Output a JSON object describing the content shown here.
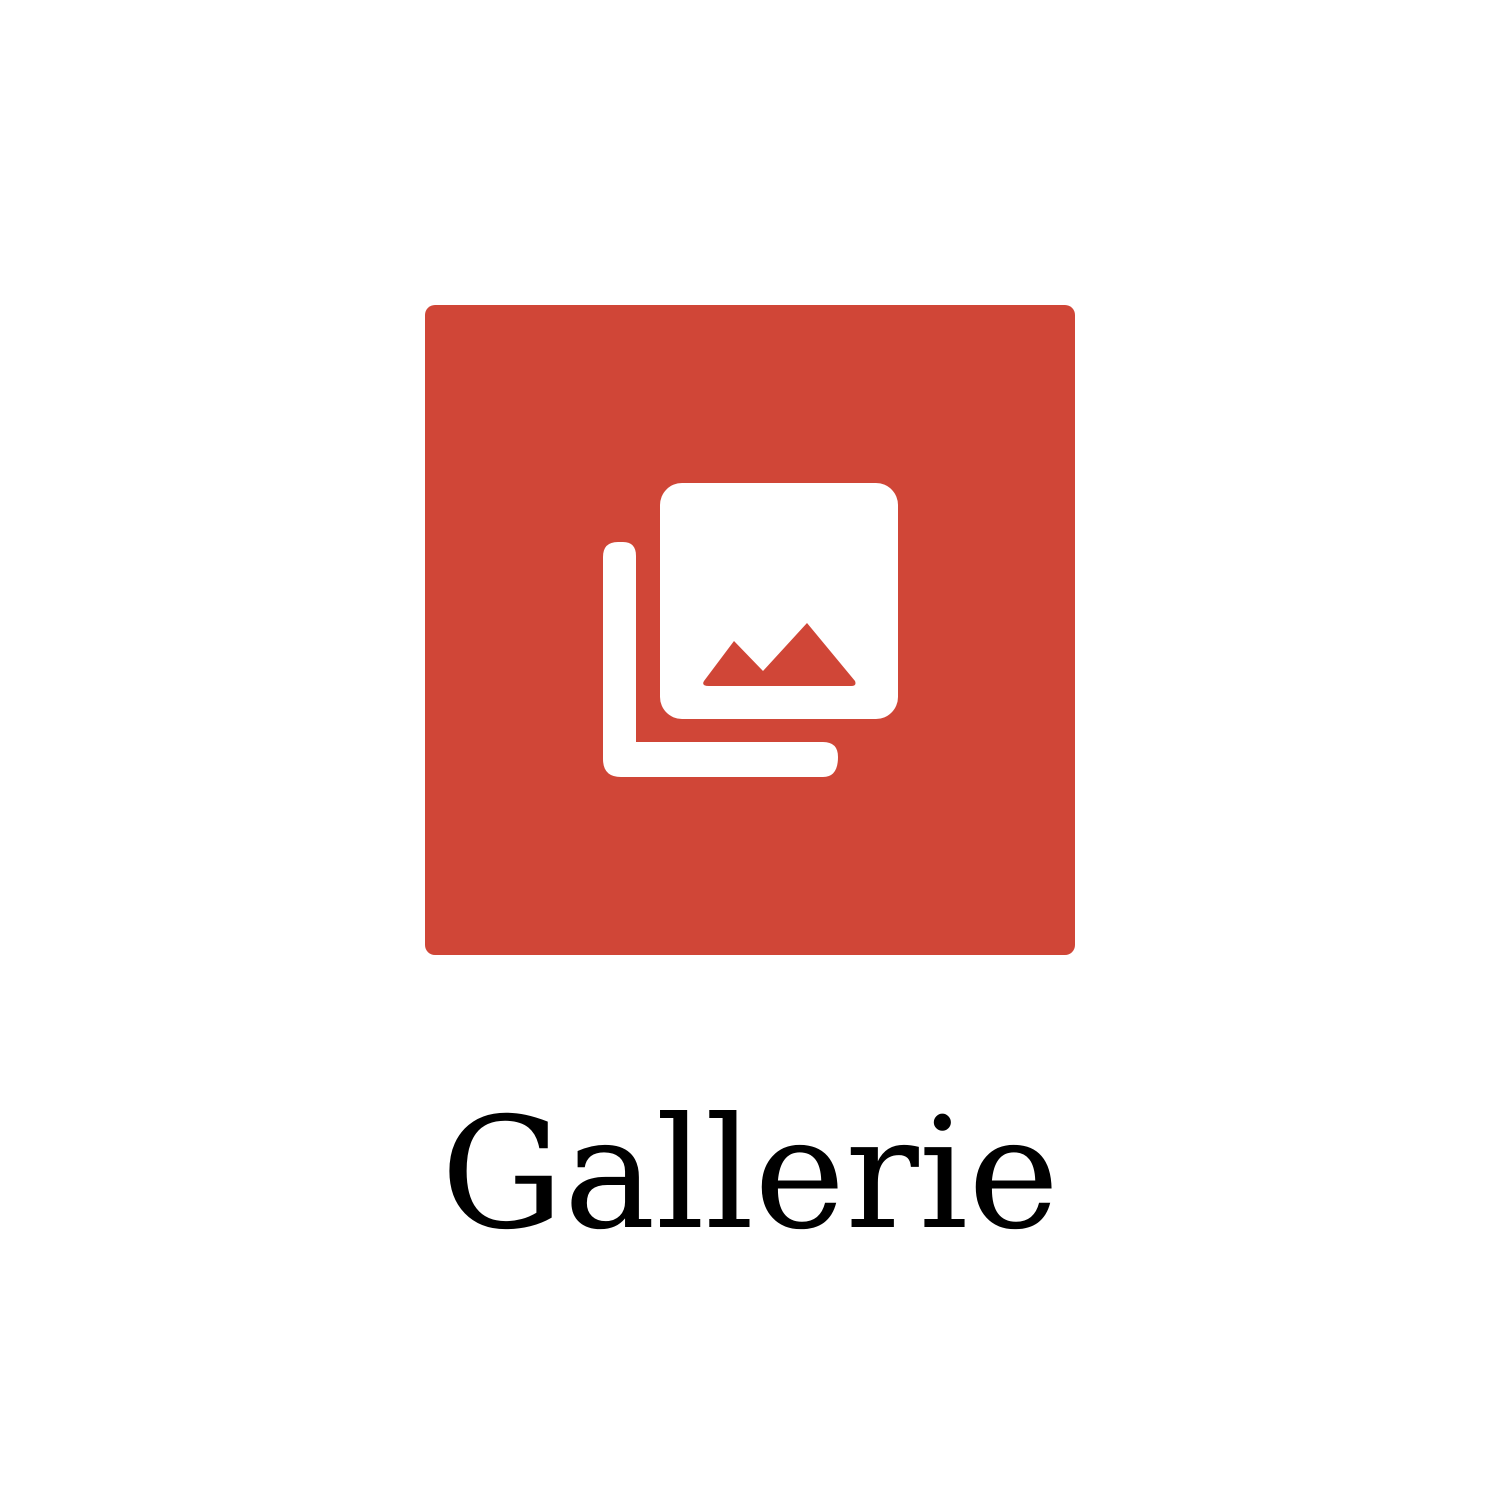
{
  "app_tile": {
    "label": "Gallerie",
    "icon": "gallery-icon",
    "colors": {
      "tile_background": "#D04637",
      "icon_foreground": "#FFFFFF",
      "label_text": "#000000",
      "page_background": "#FFFFFF"
    }
  }
}
